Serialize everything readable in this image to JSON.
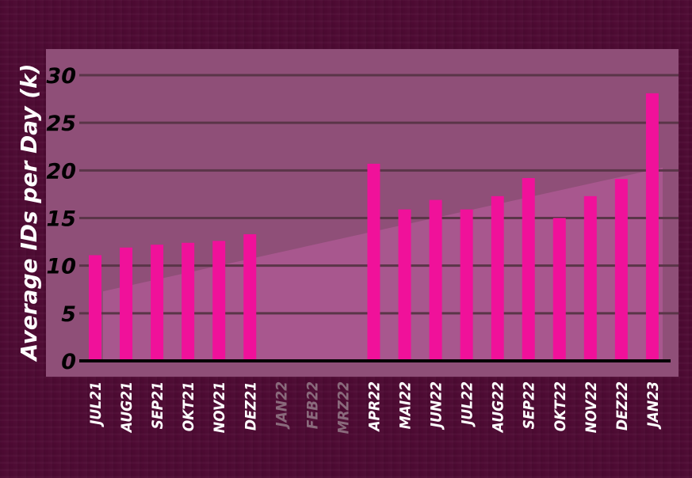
{
  "chart_data": {
    "type": "bar",
    "ylabel": "Average IDs per Day (k)",
    "xlabel": "",
    "ylim": [
      0,
      30
    ],
    "yticks": [
      0,
      5,
      10,
      15,
      20,
      25,
      30
    ],
    "grid": true,
    "categories": [
      "JUL21",
      "AUG21",
      "SEP21",
      "OKT21",
      "NOV21",
      "DEZ21",
      "JAN22",
      "FEB22",
      "MRZ22",
      "APR22",
      "MAI22",
      "JUN22",
      "JUL22",
      "AUG22",
      "SEP22",
      "OKT22",
      "NOV22",
      "DEZ22",
      "JAN23"
    ],
    "values": [
      11.1,
      11.9,
      12.2,
      12.4,
      12.6,
      13.3,
      null,
      null,
      null,
      20.7,
      15.9,
      16.9,
      15.9,
      17.3,
      19.2,
      15.0,
      17.3,
      19.1,
      28.1
    ],
    "trendline": {
      "start": 7.3,
      "end": 20.3
    },
    "colors": {
      "bar": "#f0119a",
      "missing_label": "#8a6a7c",
      "label": "#ffffff",
      "tick_label": "#000000",
      "panel": "#8f4f78",
      "trend_fill": "#a8578e",
      "gridline": "#5a3548",
      "axis": "#000000"
    }
  }
}
